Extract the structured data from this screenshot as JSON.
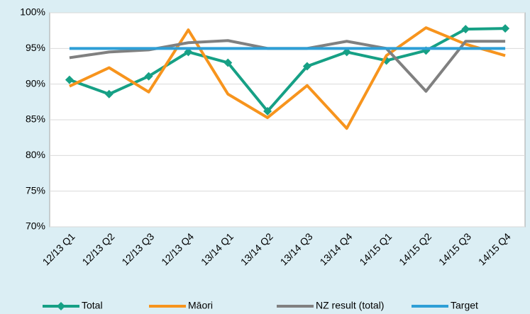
{
  "chart_data": {
    "type": "line",
    "categories": [
      "12/13 Q1",
      "12/13 Q2",
      "12/13 Q3",
      "12/13 Q4",
      "13/14 Q1",
      "13/14 Q2",
      "13/14 Q3",
      "13/14 Q4",
      "14/15 Q1",
      "14/15 Q2",
      "14/15 Q3",
      "14/15 Q4"
    ],
    "series": [
      {
        "name": "Total",
        "color": "#16a085",
        "marker": "diamond",
        "values": [
          90.6,
          88.6,
          91.1,
          94.5,
          93.0,
          86.2,
          92.5,
          94.5,
          93.3,
          94.7,
          97.7,
          97.8
        ]
      },
      {
        "name": "Māori",
        "color": "#f7941d",
        "values": [
          89.7,
          92.3,
          88.9,
          97.6,
          88.6,
          85.3,
          89.8,
          83.8,
          94.0,
          97.9,
          95.6,
          94.0
        ]
      },
      {
        "name": "NZ result (total)",
        "color": "#808080",
        "values": [
          93.7,
          94.5,
          94.8,
          95.8,
          96.1,
          95.0,
          95.0,
          96.0,
          95.0,
          89.0,
          96.0,
          96.0
        ]
      },
      {
        "name": "Target",
        "color": "#2e9fd6",
        "values": [
          95,
          95,
          95,
          95,
          95,
          95,
          95,
          95,
          95,
          95,
          95,
          95
        ]
      }
    ],
    "ylim": [
      70,
      100
    ],
    "yticks": [
      {
        "value": 70,
        "label": "70%"
      },
      {
        "value": 75,
        "label": "75%"
      },
      {
        "value": 80,
        "label": "80%"
      },
      {
        "value": 85,
        "label": "85%"
      },
      {
        "value": 90,
        "label": "90%"
      },
      {
        "value": 95,
        "label": "95%"
      },
      {
        "value": 100,
        "label": "100%"
      }
    ],
    "grid": true,
    "legend": "bottom"
  }
}
